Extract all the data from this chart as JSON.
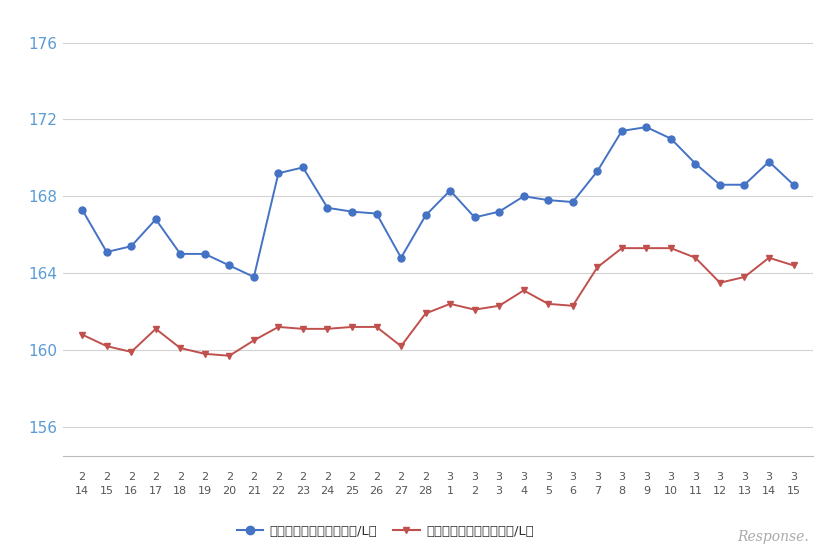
{
  "x_labels": [
    [
      "2",
      "14"
    ],
    [
      "2",
      "15"
    ],
    [
      "2",
      "16"
    ],
    [
      "2",
      "17"
    ],
    [
      "2",
      "18"
    ],
    [
      "2",
      "19"
    ],
    [
      "2",
      "20"
    ],
    [
      "2",
      "21"
    ],
    [
      "2",
      "22"
    ],
    [
      "2",
      "23"
    ],
    [
      "2",
      "24"
    ],
    [
      "2",
      "25"
    ],
    [
      "2",
      "26"
    ],
    [
      "2",
      "27"
    ],
    [
      "2",
      "28"
    ],
    [
      "3",
      "1"
    ],
    [
      "3",
      "2"
    ],
    [
      "3",
      "3"
    ],
    [
      "3",
      "4"
    ],
    [
      "3",
      "5"
    ],
    [
      "3",
      "6"
    ],
    [
      "3",
      "7"
    ],
    [
      "3",
      "8"
    ],
    [
      "3",
      "9"
    ],
    [
      "3",
      "10"
    ],
    [
      "3",
      "11"
    ],
    [
      "3",
      "12"
    ],
    [
      "3",
      "13"
    ],
    [
      "3",
      "14"
    ],
    [
      "3",
      "15"
    ]
  ],
  "blue_values": [
    167.3,
    165.1,
    165.4,
    166.8,
    165.0,
    165.0,
    164.4,
    163.8,
    169.2,
    169.5,
    167.4,
    167.2,
    167.1,
    164.8,
    167.0,
    168.3,
    166.9,
    167.2,
    168.0,
    167.8,
    167.7,
    169.3,
    171.4,
    171.6,
    171.0,
    169.7,
    168.6,
    168.6,
    169.8,
    168.6
  ],
  "red_values": [
    160.8,
    160.2,
    159.9,
    161.1,
    160.1,
    159.8,
    159.7,
    160.5,
    161.2,
    161.1,
    161.1,
    161.2,
    161.2,
    160.2,
    161.9,
    162.4,
    162.1,
    162.3,
    163.1,
    162.4,
    162.3,
    164.3,
    165.3,
    165.3,
    165.3,
    164.8,
    163.5,
    163.8,
    164.8,
    164.4
  ],
  "blue_color": "#4472C4",
  "red_color": "#C0504D",
  "background_color": "#FFFFFF",
  "grid_color": "#D3D3D3",
  "yticks": [
    156,
    160,
    164,
    168,
    172,
    176
  ],
  "ylim": [
    154.5,
    177.5
  ],
  "legend_blue": "レギュラー看板価格（円/L）",
  "legend_red": "レギュラー実売価格（円/L）",
  "marker_size_blue": 5,
  "marker_size_red": 4,
  "ytick_color": "#5B9BD5",
  "xtick_color": "#555555",
  "response_text": "Response.",
  "response_color": "#AAAAAA"
}
